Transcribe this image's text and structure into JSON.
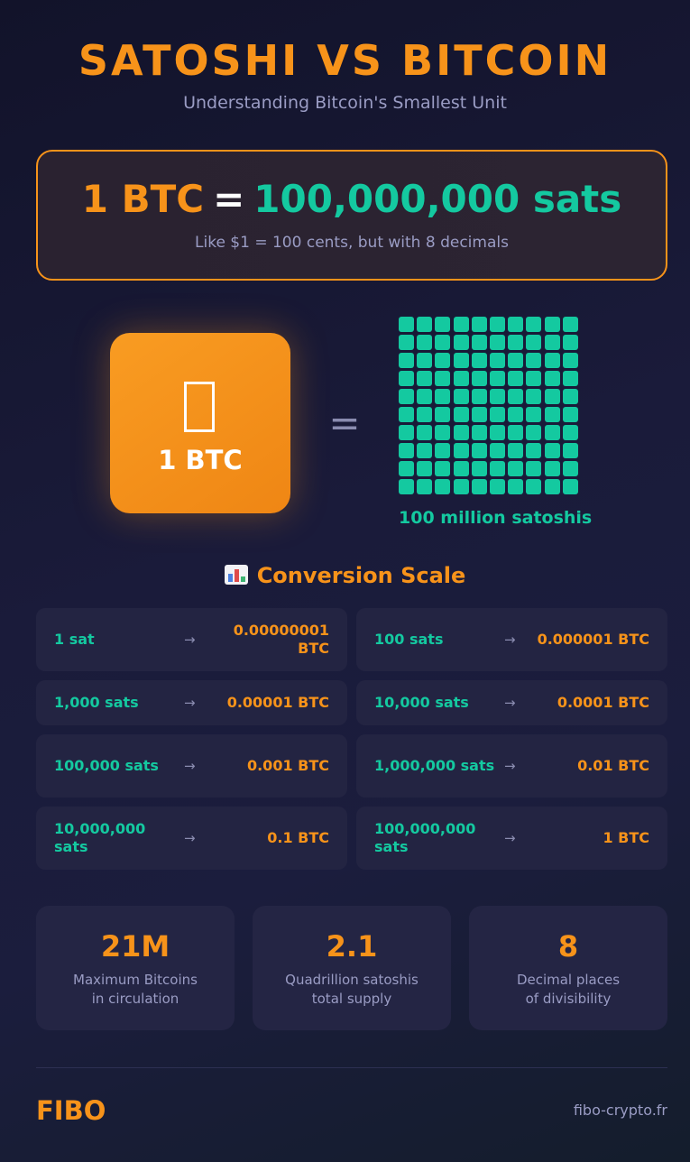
{
  "header": {
    "title": "SATOSHI VS BITCOIN",
    "subtitle": "Understanding Bitcoin's Smallest Unit"
  },
  "hero": {
    "btc": "1 BTC",
    "equals": "=",
    "sats": "100,000,000 sats",
    "note": "Like $1 = 100 cents, but with 8 decimals"
  },
  "visual": {
    "coin_icon": "bitcoin-symbol-icon",
    "coin_label": "1 BTC",
    "equals": "=",
    "grid_label": "100 million satoshis",
    "grid_rows": 10,
    "grid_cols": 10
  },
  "conversion": {
    "title": "Conversion Scale",
    "icon": "bar-chart-icon",
    "arrow": "→",
    "rows": [
      {
        "sats": "1 sat",
        "btc": "0.00000001 BTC"
      },
      {
        "sats": "100 sats",
        "btc": "0.000001 BTC"
      },
      {
        "sats": "1,000 sats",
        "btc": "0.00001 BTC"
      },
      {
        "sats": "10,000 sats",
        "btc": "0.0001 BTC"
      },
      {
        "sats": "100,000 sats",
        "btc": "0.001 BTC"
      },
      {
        "sats": "1,000,000 sats",
        "btc": "0.01 BTC"
      },
      {
        "sats": "10,000,000 sats",
        "btc": "0.1 BTC"
      },
      {
        "sats": "100,000,000 sats",
        "btc": "1 BTC"
      }
    ]
  },
  "stats": [
    {
      "value": "21M",
      "line1": "Maximum Bitcoins",
      "line2": "in circulation"
    },
    {
      "value": "2.1",
      "line1": "Quadrillion satoshis",
      "line2": "total supply"
    },
    {
      "value": "8",
      "line1": "Decimal places",
      "line2": "of divisibility"
    }
  ],
  "footer": {
    "brand": "FIBO",
    "site": "fibo-crypto.fr"
  },
  "colors": {
    "accent_orange": "#f7931a",
    "accent_green": "#14c9a0",
    "muted_text": "#9a9cc4",
    "card_bg": "#232442"
  }
}
